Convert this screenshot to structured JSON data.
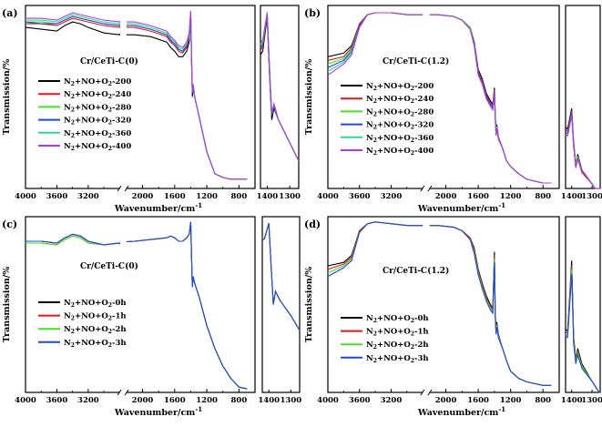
{
  "chart_data": [
    {
      "panel": "(a)",
      "type": "line",
      "title": "Cr/CeTi-C(0)",
      "xlabel": "Wavenumber/cm",
      "xlabel_sup": "-1",
      "ylabel": "Transmission/%",
      "xlim": [
        4000,
        600
      ],
      "ylim": [
        0,
        100
      ],
      "xticks": [
        "4000",
        "3600",
        "3200",
        "2000",
        "1600",
        "1200",
        "800"
      ],
      "inset_xticks": [
        "1400",
        "1300"
      ],
      "x": [
        4000,
        3800,
        3600,
        3500,
        3400,
        3300,
        3200,
        3000,
        2500,
        2100,
        1900,
        1700,
        1650,
        1600,
        1550,
        1500,
        1450,
        1420,
        1400,
        1390,
        1380,
        1370,
        1350,
        1300,
        1200,
        1100,
        1000,
        900,
        800,
        700
      ],
      "series": [
        {
          "name": "N2+NO+O2-200",
          "color": "#000000",
          "values": [
            88,
            87,
            86,
            89,
            91,
            90,
            88,
            85,
            84,
            84,
            83,
            80,
            77,
            75,
            72,
            72,
            75,
            80,
            95,
            70,
            50,
            55,
            50,
            40,
            20,
            8,
            6,
            5,
            5,
            5
          ]
        },
        {
          "name": "N2+NO+O2-240",
          "color": "#e8141c",
          "values": [
            90,
            90,
            89,
            91,
            93,
            92,
            91,
            89,
            88,
            88,
            86,
            83,
            80,
            78,
            75,
            74,
            77,
            82,
            96,
            72,
            52,
            56,
            50,
            40,
            20,
            8,
            6,
            5,
            5,
            5
          ]
        },
        {
          "name": "N2+NO+O2-280",
          "color": "#3ee61e",
          "values": [
            91,
            91,
            90,
            92,
            94,
            93,
            92,
            90,
            89,
            89,
            87,
            84,
            81,
            79,
            76,
            75,
            78,
            83,
            96,
            72,
            52,
            56,
            50,
            40,
            20,
            8,
            6,
            5,
            5,
            5
          ]
        },
        {
          "name": "N2+NO+O2-320",
          "color": "#2048d8",
          "values": [
            91,
            90,
            90,
            92,
            94,
            93,
            92,
            90,
            89,
            89,
            87,
            84,
            81,
            79,
            76,
            75,
            78,
            83,
            96,
            72,
            52,
            56,
            50,
            40,
            20,
            8,
            6,
            5,
            5,
            5
          ]
        },
        {
          "name": "N2+NO+O2-360",
          "color": "#31d6a0",
          "values": [
            92,
            92,
            91,
            93,
            95,
            94,
            93,
            91,
            90,
            90,
            88,
            85,
            82,
            80,
            77,
            76,
            79,
            84,
            97,
            73,
            53,
            57,
            50,
            40,
            20,
            8,
            6,
            5,
            5,
            5
          ]
        },
        {
          "name": "N2+NO+O2-400",
          "color": "#b33bd9",
          "values": [
            93,
            93,
            92,
            94,
            96,
            95,
            94,
            92,
            91,
            91,
            89,
            86,
            83,
            81,
            78,
            77,
            80,
            85,
            97,
            73,
            53,
            57,
            50,
            40,
            20,
            8,
            6,
            5,
            5,
            5
          ]
        }
      ]
    },
    {
      "panel": "(b)",
      "type": "line",
      "title": "Cr/CeTi-C(1.2)",
      "xlabel": "Wavenumber/cm",
      "xlabel_sup": "-1",
      "ylabel": "Transmission/%",
      "xlim": [
        4000,
        600
      ],
      "ylim": [
        0,
        100
      ],
      "xticks": [
        "4000",
        "3600",
        "3200",
        "2000",
        "1600",
        "1200",
        "800"
      ],
      "inset_xticks": [
        "1400",
        "1300"
      ],
      "x": [
        4000,
        3800,
        3700,
        3600,
        3500,
        3400,
        3200,
        3000,
        2500,
        2100,
        1900,
        1800,
        1700,
        1650,
        1600,
        1550,
        1500,
        1450,
        1420,
        1400,
        1390,
        1380,
        1370,
        1350,
        1300,
        1250,
        1200,
        1100,
        1000,
        900,
        800,
        700
      ],
      "series": [
        {
          "name": "N2+NO+O2-200",
          "color": "#000000",
          "values": [
            72,
            74,
            78,
            90,
            95,
            96,
            96,
            95,
            95,
            95,
            94,
            92,
            88,
            80,
            65,
            60,
            52,
            48,
            46,
            55,
            40,
            30,
            35,
            28,
            22,
            15,
            12,
            8,
            5,
            4,
            3,
            3
          ]
        },
        {
          "name": "N2+NO+O2-240",
          "color": "#e8141c",
          "values": [
            70,
            72,
            77,
            90,
            95,
            96,
            96,
            95,
            95,
            95,
            94,
            92,
            88,
            80,
            64,
            59,
            51,
            47,
            45,
            54,
            40,
            30,
            34,
            28,
            22,
            15,
            12,
            8,
            5,
            4,
            3,
            3
          ]
        },
        {
          "name": "N2+NO+O2-280",
          "color": "#3ee61e",
          "values": [
            68,
            71,
            76,
            89,
            95,
            96,
            96,
            95,
            95,
            95,
            94,
            92,
            88,
            79,
            63,
            58,
            50,
            46,
            44,
            53,
            39,
            30,
            34,
            27,
            22,
            15,
            12,
            8,
            5,
            4,
            3,
            3
          ]
        },
        {
          "name": "N2+NO+O2-320",
          "color": "#2048d8",
          "values": [
            66,
            70,
            75,
            89,
            95,
            96,
            96,
            95,
            95,
            95,
            94,
            92,
            87,
            79,
            63,
            58,
            50,
            46,
            44,
            53,
            39,
            29,
            33,
            27,
            22,
            15,
            12,
            8,
            5,
            4,
            3,
            3
          ]
        },
        {
          "name": "N2+NO+O2-360",
          "color": "#31d6a0",
          "values": [
            64,
            69,
            74,
            88,
            95,
            96,
            96,
            95,
            95,
            95,
            94,
            92,
            87,
            78,
            62,
            57,
            49,
            45,
            43,
            52,
            38,
            29,
            33,
            27,
            22,
            15,
            12,
            8,
            5,
            4,
            3,
            3
          ]
        },
        {
          "name": "N2+NO+O2-400",
          "color": "#b33bd9",
          "values": [
            62,
            68,
            73,
            88,
            95,
            96,
            96,
            95,
            95,
            95,
            94,
            92,
            87,
            78,
            62,
            57,
            49,
            45,
            43,
            52,
            38,
            29,
            33,
            27,
            22,
            15,
            12,
            8,
            5,
            4,
            3,
            3
          ]
        }
      ]
    },
    {
      "panel": "(c)",
      "type": "line",
      "title": "Cr/CeTi-C(0)",
      "xlabel": "Wavenumber/cm",
      "xlabel_sup": "-1",
      "ylabel": "Transmission/%",
      "xlim": [
        4000,
        600
      ],
      "ylim": [
        0,
        100
      ],
      "xticks": [
        "4000",
        "3600",
        "3200",
        "2000",
        "1600",
        "1200",
        "800"
      ],
      "inset_xticks": [
        "1400",
        "1300"
      ],
      "x": [
        4000,
        3800,
        3600,
        3500,
        3400,
        3300,
        3200,
        3000,
        2500,
        2100,
        1900,
        1700,
        1650,
        1600,
        1550,
        1500,
        1450,
        1420,
        1400,
        1390,
        1380,
        1370,
        1350,
        1300,
        1200,
        1100,
        1000,
        900,
        800,
        700
      ],
      "series": [
        {
          "name": "N2+NO+O2-0h",
          "color": "#000000",
          "values": [
            86,
            86,
            85,
            88,
            90,
            89,
            86,
            84,
            85,
            86,
            87,
            88,
            89,
            88,
            86,
            86,
            88,
            90,
            97,
            78,
            60,
            66,
            62,
            55,
            38,
            25,
            15,
            8,
            3,
            2
          ]
        },
        {
          "name": "N2+NO+O2-1h",
          "color": "#e8141c",
          "values": [
            85,
            85,
            84,
            87,
            89,
            88,
            85,
            84,
            85,
            86,
            87,
            88,
            89,
            88,
            86,
            86,
            88,
            90,
            97,
            78,
            60,
            66,
            62,
            55,
            38,
            25,
            15,
            8,
            3,
            2
          ]
        },
        {
          "name": "N2+NO+O2-2h",
          "color": "#3ee61e",
          "values": [
            85,
            85,
            84,
            87,
            89,
            88,
            85,
            84,
            85,
            86,
            87,
            88,
            89,
            88,
            86,
            86,
            88,
            90,
            97,
            78,
            60,
            66,
            62,
            55,
            38,
            25,
            15,
            8,
            3,
            2
          ]
        },
        {
          "name": "N2+NO+O2-3h",
          "color": "#2048d8",
          "values": [
            86,
            86,
            85,
            88,
            90,
            89,
            86,
            84,
            85,
            86,
            87,
            88,
            89,
            88,
            86,
            86,
            88,
            90,
            97,
            78,
            60,
            66,
            62,
            55,
            38,
            25,
            15,
            8,
            3,
            2
          ]
        }
      ]
    },
    {
      "panel": "(d)",
      "type": "line",
      "title": "Cr/CeTi-C(1.2)",
      "xlabel": "Wavenumber/cm",
      "xlabel_sup": "-1",
      "ylabel": "Transmission/%",
      "xlim": [
        4000,
        600
      ],
      "ylim": [
        0,
        100
      ],
      "xticks": [
        "4000",
        "3600",
        "3200",
        "2000",
        "1600",
        "1200",
        "800"
      ],
      "inset_xticks": [
        "1400",
        "1300"
      ],
      "x": [
        4000,
        3800,
        3700,
        3600,
        3500,
        3400,
        3200,
        3000,
        2500,
        2100,
        1900,
        1800,
        1700,
        1650,
        1600,
        1550,
        1500,
        1450,
        1420,
        1400,
        1390,
        1380,
        1370,
        1350,
        1300,
        1250,
        1200,
        1100,
        1000,
        900,
        800,
        700
      ],
      "series": [
        {
          "name": "N2+NO+O2-0h",
          "color": "#000000",
          "values": [
            72,
            74,
            78,
            92,
            96,
            97,
            96,
            95,
            95,
            95,
            94,
            92,
            88,
            82,
            70,
            62,
            55,
            50,
            48,
            80,
            45,
            35,
            40,
            33,
            25,
            18,
            12,
            8,
            6,
            5,
            4,
            4
          ]
        },
        {
          "name": "N2+NO+O2-1h",
          "color": "#e8141c",
          "values": [
            70,
            73,
            77,
            92,
            96,
            97,
            96,
            95,
            95,
            95,
            94,
            92,
            88,
            81,
            69,
            61,
            54,
            49,
            47,
            78,
            44,
            34,
            39,
            32,
            25,
            18,
            12,
            8,
            6,
            5,
            4,
            4
          ]
        },
        {
          "name": "N2+NO+O2-2h",
          "color": "#3ee61e",
          "values": [
            68,
            72,
            76,
            91,
            96,
            97,
            96,
            95,
            95,
            95,
            94,
            92,
            87,
            80,
            68,
            60,
            53,
            48,
            46,
            76,
            43,
            34,
            38,
            32,
            25,
            18,
            12,
            8,
            6,
            5,
            4,
            4
          ]
        },
        {
          "name": "N2+NO+O2-3h",
          "color": "#2048d8",
          "values": [
            66,
            71,
            75,
            91,
            96,
            97,
            96,
            95,
            95,
            95,
            94,
            92,
            87,
            79,
            67,
            59,
            52,
            47,
            45,
            74,
            42,
            33,
            37,
            31,
            25,
            18,
            12,
            8,
            6,
            5,
            4,
            4
          ]
        }
      ]
    }
  ]
}
